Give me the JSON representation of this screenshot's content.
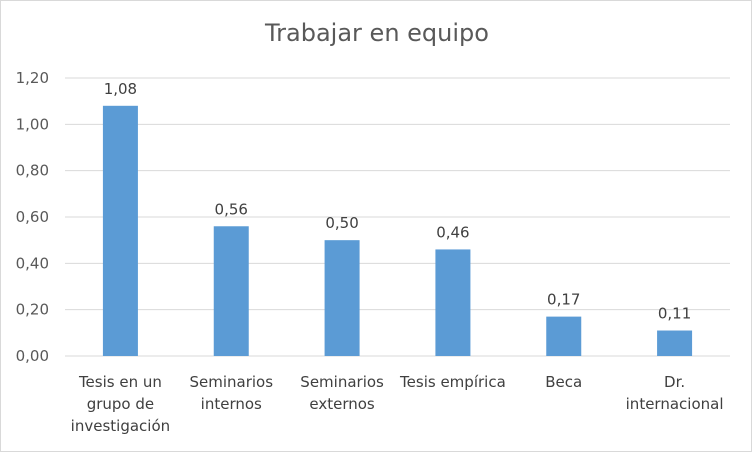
{
  "chart_data": {
    "type": "bar",
    "title": "Trabajar en equipo",
    "xlabel": "",
    "ylabel": "",
    "categories": [
      "Tesis en un grupo de investigación",
      "Seminarios internos",
      "Seminarios externos",
      "Tesis empírica",
      "Beca",
      "Dr. internacional"
    ],
    "category_lines": [
      [
        "Tesis en un",
        "grupo de",
        "investigación"
      ],
      [
        "Seminarios",
        "internos"
      ],
      [
        "Seminarios",
        "externos"
      ],
      [
        "Tesis empírica"
      ],
      [
        "Beca"
      ],
      [
        "Dr.",
        "internacional"
      ]
    ],
    "values": [
      1.08,
      0.56,
      0.5,
      0.46,
      0.17,
      0.11
    ],
    "data_labels": [
      "1,08",
      "0,56",
      "0,50",
      "0,46",
      "0,17",
      "0,11"
    ],
    "ylim": [
      0,
      1.2
    ],
    "yticks": [
      0,
      0.2,
      0.4,
      0.6,
      0.8,
      1.0,
      1.2
    ],
    "ytick_labels": [
      "0,00",
      "0,20",
      "0,40",
      "0,60",
      "0,80",
      "1,00",
      "1,20"
    ],
    "grid": true,
    "legend": "none",
    "bar_color": "#5b9bd5",
    "grid_color": "#d9d9d9"
  }
}
